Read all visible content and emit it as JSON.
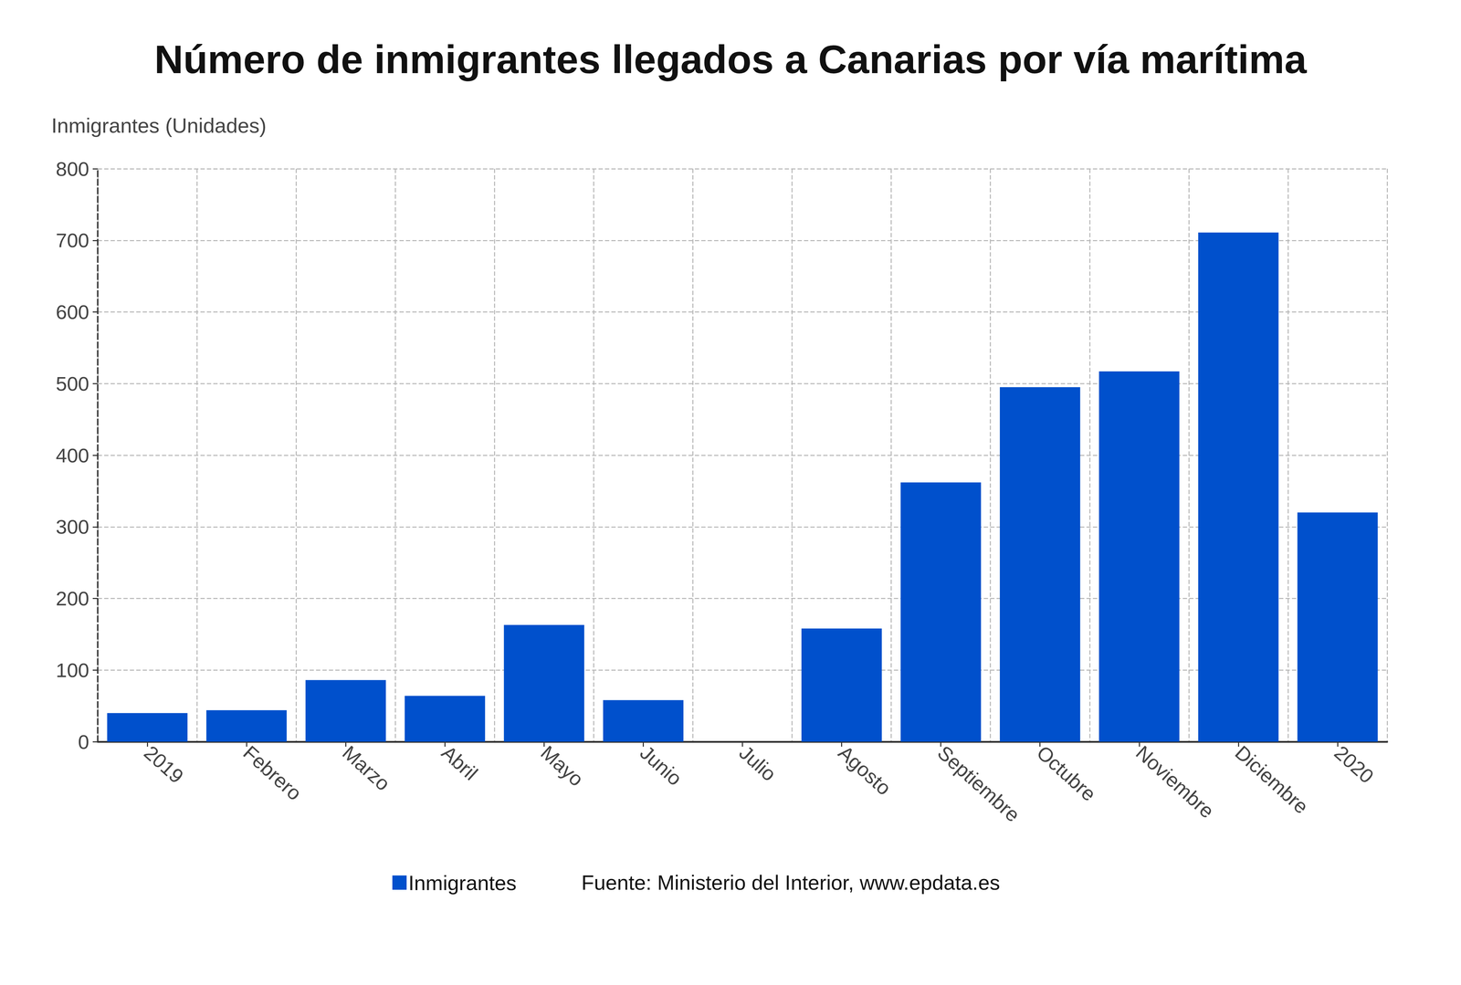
{
  "chart_data": {
    "type": "bar",
    "title": "Número de inmigrantes llegados a Canarias por vía marítima",
    "y_label": "Inmigrantes (Unidades)",
    "categories": [
      "2019",
      "Febrero",
      "Marzo",
      "Abril",
      "Mayo",
      "Junio",
      "Julio",
      "Agosto",
      "Septiembre",
      "Octubre",
      "Noviembre",
      "Diciembre",
      "2020"
    ],
    "series": [
      {
        "name": "Inmigrantes",
        "color": "#0050cc",
        "values": [
          40,
          44,
          86,
          64,
          163,
          58,
          0,
          158,
          362,
          495,
          517,
          711,
          320
        ]
      }
    ],
    "ylim": [
      0,
      800
    ],
    "yticks": [
      0,
      100,
      200,
      300,
      400,
      500,
      600,
      700,
      800
    ],
    "grid": true,
    "legend": "bottom",
    "source": "Fuente: Ministerio del Interior, www.epdata.es"
  }
}
